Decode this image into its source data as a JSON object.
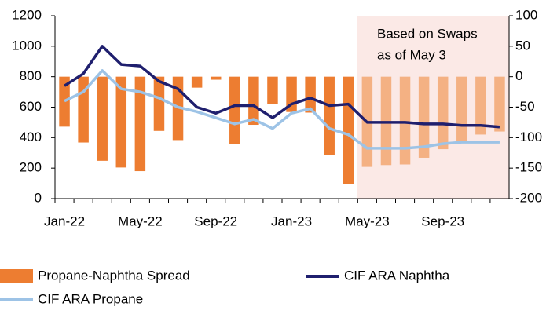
{
  "chart_data": {
    "type": "bar_line",
    "categories": [
      "Jan-22",
      null,
      null,
      null,
      "May-22",
      null,
      null,
      null,
      "Sep-22",
      null,
      null,
      null,
      "Jan-23",
      null,
      null,
      null,
      "May-23",
      null,
      null,
      null,
      "Sep-23",
      null,
      null,
      null
    ],
    "annotation": [
      "Based on Swaps",
      "as of May 3"
    ],
    "shade_start": "May-23",
    "shade_color": "#fbe9e6",
    "series": [
      {
        "name": "Propane-Naphtha Spread",
        "type": "bar",
        "axis": "y2",
        "colors": [
          "#ed7d31",
          "#ed7d31",
          "#ed7d31",
          "#ed7d31",
          "#ed7d31",
          "#ed7d31",
          "#ed7d31",
          "#ed7d31",
          "#ed7d31",
          "#ed7d31",
          "#ed7d31",
          "#ed7d31",
          "#ed7d31",
          "#ed7d31",
          "#ed7d31",
          "#ed7d31",
          "#f4b183",
          "#f4b183",
          "#f4b183",
          "#f4b183",
          "#f4b183",
          "#f4b183",
          "#f4b183",
          "#f4b183"
        ],
        "color": "#ed7d31",
        "values": [
          -82,
          -108,
          -138,
          -149,
          -155,
          -89,
          -104,
          -18,
          -5,
          -110,
          -79,
          -45,
          -58,
          -59,
          -128,
          -176,
          -148,
          -145,
          -144,
          -133,
          -119,
          -105,
          -95,
          -90
        ]
      },
      {
        "name": "CIF ARA Naphtha",
        "type": "line",
        "color": "#1f1f6e",
        "values": [
          740,
          820,
          1000,
          880,
          870,
          770,
          720,
          600,
          560,
          610,
          610,
          530,
          620,
          660,
          610,
          620,
          500,
          500,
          500,
          490,
          490,
          480,
          480,
          470
        ]
      },
      {
        "name": "CIF ARA Propane",
        "type": "line",
        "color": "#9dc3e6",
        "values": [
          640,
          700,
          840,
          720,
          700,
          660,
          600,
          570,
          530,
          490,
          520,
          460,
          560,
          590,
          460,
          420,
          330,
          330,
          330,
          340,
          360,
          370,
          370,
          370
        ]
      }
    ],
    "ylim": [
      0,
      1200
    ],
    "yticks": [
      0,
      200,
      400,
      600,
      800,
      1000,
      1200
    ],
    "y2lim": [
      -200,
      100
    ],
    "y2ticks": [
      -200,
      -150,
      -100,
      -50,
      0,
      50,
      100
    ]
  }
}
